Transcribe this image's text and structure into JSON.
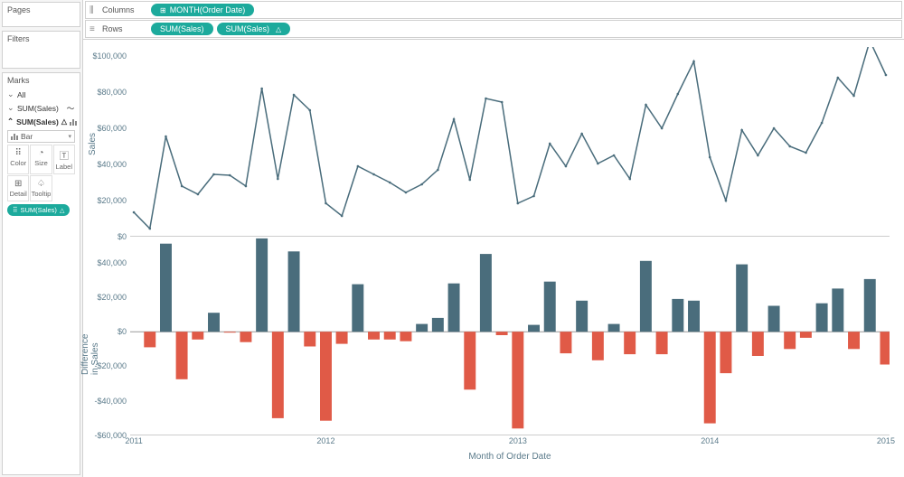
{
  "panels": {
    "pages": "Pages",
    "filters": "Filters",
    "marks": "Marks"
  },
  "marks_card": {
    "rows": [
      {
        "label": "All",
        "icon": null
      },
      {
        "label": "SUM(Sales)",
        "icon": "line"
      },
      {
        "label": "SUM(Sales)",
        "icon": "delta-bar"
      }
    ],
    "dropdown": "Bar",
    "grid": [
      "Color",
      "Size",
      "Label",
      "Detail",
      "Tooltip"
    ],
    "pill": "SUM(Sales)"
  },
  "shelves": {
    "columns": {
      "label": "Columns",
      "pills": [
        {
          "text": "MONTH(Order Date)",
          "type": "dim"
        }
      ]
    },
    "rows": {
      "label": "Rows",
      "pills": [
        {
          "text": "SUM(Sales)",
          "type": "measure"
        },
        {
          "text": "SUM(Sales)",
          "type": "measure-delta"
        }
      ]
    }
  },
  "chart": {
    "x_axis_title": "Month of Order Date",
    "y1_title": "Sales",
    "y2_title": "Difference in Sales",
    "x_years": [
      2011,
      2012,
      2013,
      2014,
      2015
    ],
    "line": {
      "ylim": [
        0,
        105000
      ],
      "yticks": [
        0,
        20000,
        40000,
        60000,
        80000,
        100000
      ],
      "ytick_labels": [
        "$0",
        "$20,000",
        "$40,000",
        "$60,000",
        "$80,000",
        "$100,000"
      ],
      "color": "#4a6d7c",
      "values": [
        13500,
        4500,
        55500,
        28000,
        23500,
        34500,
        34000,
        28000,
        82000,
        32000,
        78500,
        70000,
        18500,
        11500,
        39000,
        34500,
        30000,
        24500,
        29000,
        37000,
        65000,
        31500,
        76500,
        74500,
        18500,
        22500,
        51500,
        39000,
        57000,
        40500,
        45000,
        32000,
        73000,
        60000,
        79000,
        97000,
        44000,
        20000,
        59000,
        45000,
        60000,
        50000,
        46500,
        63000,
        88000,
        78000,
        108500,
        89500
      ]
    },
    "bars": {
      "ylim": [
        -60000,
        55000
      ],
      "yticks": [
        -60000,
        -40000,
        -20000,
        0,
        20000,
        40000
      ],
      "ytick_labels": [
        "-$60,000",
        "-$40,000",
        "-$20,000",
        "$0",
        "$20,000",
        "$40,000"
      ],
      "pos_color": "#4a6d7c",
      "neg_color": "#e05a47",
      "values": [
        null,
        -9000,
        51000,
        -27500,
        -4500,
        11000,
        -500,
        -6000,
        54000,
        -50000,
        46500,
        -8500,
        -51500,
        -7000,
        27500,
        -4500,
        -4500,
        -5500,
        4500,
        8000,
        28000,
        -33500,
        45000,
        -2000,
        -56000,
        4000,
        29000,
        -12500,
        18000,
        -16500,
        4500,
        -13000,
        41000,
        -13000,
        19000,
        18000,
        -53000,
        -24000,
        39000,
        -14000,
        15000,
        -10000,
        -3500,
        16500,
        25000,
        -10000,
        30500,
        -19000
      ]
    }
  }
}
